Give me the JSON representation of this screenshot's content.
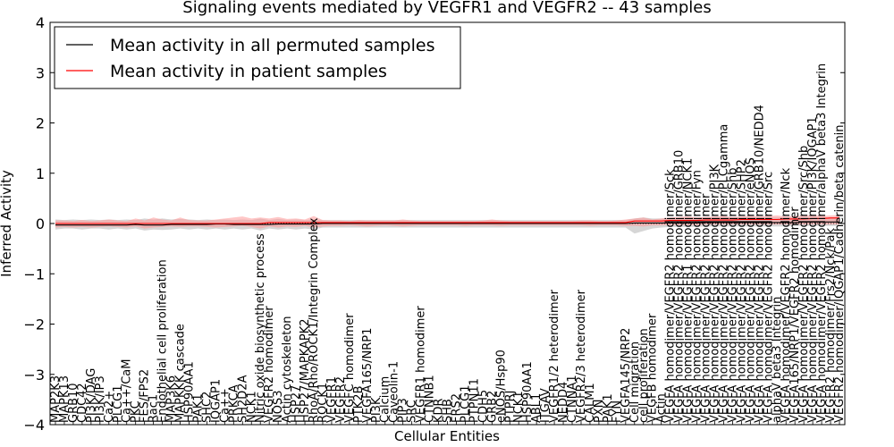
{
  "chart_data": {
    "type": "line",
    "title": "Signaling events mediated by VEGFR1 and VEGFR2 -- 43 samples",
    "xlabel": "Cellular Entities",
    "ylabel": "Inferred Activity",
    "ylim": [
      -4,
      4
    ],
    "yticks": [
      -4,
      -3,
      -2,
      -1,
      0,
      1,
      2,
      3,
      4
    ],
    "grid": false,
    "legend_position": "top-left",
    "legend": [
      {
        "label": "Mean activity in all permuted samples",
        "color": "#000000"
      },
      {
        "label": "Mean activity in patient samples",
        "color": "#ff0000"
      }
    ],
    "categories": [
      "MAP2K3",
      "MAPK13",
      "GRB10",
      "CDC42",
      "PI3K/DAG",
      "PI3K/IP3",
      "Ca2+",
      "PLCG1",
      "Ca++/CaM",
      "PKC",
      "FES/FPS2",
      "Rac1",
      "Endothelial cell proliferation",
      "MAP3K6",
      "MAPKKK cascade",
      "HSP90AA1",
      "PAK1",
      "SHC2",
      "IQGAP1",
      "Ca++",
      "PRKCA",
      "SH2D2A",
      "NCK1",
      "Nitric oxide biosynthetic process",
      "VEGFR2 homodimer",
      "NOS3",
      "Actin cytoskeleton",
      "HSP27",
      "HSP27/MAPKAPK2",
      "RhoA/Rho/ROCK1/Integrin Complex",
      "ROCK1",
      "VEGFR1",
      "VEGFR2",
      "VEGFC homodimer",
      "PTK2B",
      "VEGFA165/NRP1",
      "PI3K",
      "Calcium",
      "Caveolin-1",
      "PIP3",
      "SRC",
      "VEGFR1 homodimer",
      "CTNNB1",
      "KDR",
      "SHB",
      "FRS2",
      "PLCG1",
      "PTPN11",
      "CDH5",
      "GRB2",
      "eNOS/Hsp90",
      "PTPRJ",
      "NCK1",
      "HSP90AA1",
      "ABL1",
      "ITGAV",
      "VEGFR1/2 heterodimer",
      "NEDD4",
      "CTNNA1",
      "VEGFR2/3 heterodimer",
      "CALM1",
      "PXN",
      "PAK1",
      "FYN",
      "VEGFA145/NRP2",
      "Cell migration",
      "cell proliferation",
      "VEGFB homodimer",
      "Actin",
      "VEGFA homodimer/VEGFR2 homodimer/Sck",
      "VEGFA homodimer/VEGFR2 homodimer/GRB10",
      "VEGFA homodimer/VEGFR1 homodimer/NCK1",
      "VEGFA homodimer/VEGFR2 homodimer/Fyn",
      "VEGFA homodimer/VEGFR2 homodimer",
      "VEGFA homodimer/VEGFR2 homodimer/PI3K",
      "VEGFA homodimer/VEGFR2 homodimer/PLCgamma",
      "VEGFA homodimer/VEGFR2 homodimer/Shb",
      "VEGFA homodimer/VEGFR2 homodimer/SHP2",
      "VEGFA homodimer/VEGFR2 homodimer/eNOS",
      "VEGFA homodimer/VEGFR2 homodimer/GRB10/NEDD4",
      "VEGFA homodimer/VEGFR2 homodimer/Src",
      "alphaV beta3 Integrin",
      "VEGFA homodimer/VEGFR2 homodimer/Nck",
      "VEGFA165/NRP1/VEGFR2 homodimer",
      "VEGFA homodimer/VEGFR2 homodimer/Src/Shb",
      "VEGFA homodimer/VEGFR2 homodimer/PI3K/IQGAP1",
      "VEGFA homodimer/VEGFR2 homodimer/alphaV beta3 Integrin",
      "VEGFR2 homodimer/Frs2/Nck/Pak",
      "VEGFR2 homodimer/IQGAP1/Cadherin/beta catenin"
    ],
    "series": [
      {
        "name": "Mean activity in all permuted samples",
        "color": "#000000",
        "values": [
          -0.03,
          -0.03,
          -0.03,
          -0.03,
          -0.03,
          -0.03,
          -0.03,
          -0.03,
          -0.03,
          -0.02,
          -0.03,
          -0.03,
          -0.03,
          -0.02,
          -0.02,
          -0.02,
          -0.02,
          -0.02,
          -0.01,
          -0.01,
          -0.02,
          -0.02,
          -0.02,
          -0.02,
          -0.02,
          -0.01,
          -0.01,
          -0.01,
          -0.01,
          -0.01,
          0.0,
          0.0,
          0.0,
          0.0,
          0.0,
          0.0,
          0.0,
          0.0,
          0.0,
          0.0,
          0.0,
          0.0,
          0.0,
          0.0,
          0.0,
          0.0,
          0.0,
          0.0,
          0.0,
          0.0,
          0.0,
          0.0,
          0.0,
          0.0,
          0.0,
          0.0,
          0.0,
          0.0,
          0.0,
          0.0,
          0.0,
          0.0,
          0.0,
          0.0,
          0.0,
          0.01,
          0.01,
          0.01,
          0.01,
          0.01,
          0.01,
          0.01,
          0.01,
          0.02,
          0.02,
          0.02,
          0.02,
          0.02,
          0.02,
          0.02,
          0.02,
          0.02,
          0.02,
          0.02,
          0.03,
          0.03,
          0.03,
          0.03,
          0.03
        ]
      },
      {
        "name": "Mean activity in patient samples",
        "color": "#ff0000",
        "values": [
          0.0,
          0.0,
          0.0,
          0.0,
          0.0,
          0.0,
          0.0,
          0.0,
          0.0,
          0.0,
          0.0,
          0.0,
          0.0,
          0.0,
          0.0,
          0.0,
          0.0,
          0.0,
          0.0,
          0.0,
          0.0,
          0.0,
          0.0,
          0.0,
          0.02,
          0.02,
          0.02,
          0.02,
          0.02,
          0.02,
          0.02,
          0.02,
          0.02,
          0.02,
          0.02,
          0.02,
          0.02,
          0.02,
          0.02,
          0.02,
          0.02,
          0.02,
          0.02,
          0.02,
          0.02,
          0.02,
          0.02,
          0.02,
          0.02,
          0.02,
          0.02,
          0.02,
          0.02,
          0.02,
          0.02,
          0.02,
          0.02,
          0.02,
          0.02,
          0.02,
          0.02,
          0.02,
          0.02,
          0.02,
          0.02,
          0.05,
          0.05,
          0.05,
          0.05,
          0.06,
          0.06,
          0.06,
          0.06,
          0.07,
          0.07,
          0.07,
          0.07,
          0.08,
          0.08,
          0.08,
          0.08,
          0.08,
          0.09,
          0.09,
          0.09,
          0.1,
          0.1,
          0.11,
          0.11
        ]
      }
    ],
    "band": {
      "name": "patient spread",
      "color": "#ff9999",
      "lower": [
        -0.08,
        -0.07,
        -0.08,
        -0.07,
        -0.08,
        -0.07,
        -0.06,
        -0.07,
        -0.08,
        -0.06,
        -0.1,
        -0.08,
        -0.07,
        -0.06,
        -0.07,
        -0.06,
        -0.06,
        -0.07,
        -0.08,
        -0.07,
        -0.06,
        -0.05,
        -0.07,
        -0.1,
        -0.06,
        -0.08,
        -0.06,
        -0.07,
        -0.05,
        -0.08,
        -0.06,
        -0.05,
        -0.05,
        -0.04,
        -0.05,
        -0.06,
        -0.05,
        -0.04,
        -0.05,
        -0.06,
        -0.05,
        -0.04,
        -0.04,
        -0.04,
        -0.04,
        -0.04,
        -0.05,
        -0.04,
        -0.04,
        -0.04,
        -0.05,
        -0.04,
        -0.04,
        -0.04,
        -0.04,
        -0.04,
        -0.04,
        -0.04,
        -0.04,
        -0.04,
        -0.05,
        -0.04,
        -0.04,
        -0.04,
        -0.05,
        -0.05,
        -0.06,
        -0.04,
        -0.04,
        -0.03,
        -0.03,
        -0.03,
        -0.03,
        -0.02,
        -0.02,
        -0.02,
        -0.02,
        -0.02,
        -0.02,
        -0.02,
        -0.02,
        -0.02,
        -0.02,
        -0.02,
        -0.02,
        -0.02,
        -0.02,
        -0.02,
        -0.02
      ],
      "upper": [
        0.06,
        0.06,
        0.05,
        0.07,
        0.05,
        0.06,
        0.08,
        0.06,
        0.05,
        0.1,
        0.06,
        0.12,
        0.08,
        0.06,
        0.12,
        0.07,
        0.06,
        0.06,
        0.08,
        0.1,
        0.12,
        0.14,
        0.1,
        0.12,
        0.1,
        0.13,
        0.09,
        0.1,
        0.08,
        0.15,
        0.07,
        0.06,
        0.06,
        0.05,
        0.07,
        0.06,
        0.06,
        0.06,
        0.06,
        0.08,
        0.06,
        0.05,
        0.05,
        0.05,
        0.05,
        0.05,
        0.05,
        0.05,
        0.06,
        0.08,
        0.06,
        0.05,
        0.05,
        0.05,
        0.05,
        0.05,
        0.05,
        0.05,
        0.05,
        0.06,
        0.06,
        0.05,
        0.05,
        0.06,
        0.08,
        0.1,
        0.12,
        0.08,
        0.1,
        0.12,
        0.13,
        0.14,
        0.12,
        0.13,
        0.14,
        0.15,
        0.13,
        0.14,
        0.15,
        0.14,
        0.15,
        0.16,
        0.14,
        0.15,
        0.16,
        0.17,
        0.15,
        0.16,
        0.17
      ]
    },
    "permuted_band": {
      "name": "permuted spread",
      "color": "#bbbbbb",
      "lower": [
        -0.12,
        -0.1,
        -0.1,
        -0.12,
        -0.1,
        -0.1,
        -0.12,
        -0.1,
        -0.12,
        -0.1,
        -0.14,
        -0.12,
        -0.13,
        -0.12,
        -0.1,
        -0.12,
        -0.1,
        -0.12,
        -0.1,
        -0.12,
        -0.1,
        -0.12,
        -0.1,
        -0.14,
        -0.1,
        -0.12,
        -0.1,
        -0.12,
        -0.1,
        -0.12,
        -0.08,
        -0.08,
        -0.08,
        -0.08,
        -0.08,
        -0.08,
        -0.08,
        -0.08,
        -0.08,
        -0.08,
        -0.08,
        -0.08,
        -0.08,
        -0.08,
        -0.08,
        -0.08,
        -0.08,
        -0.08,
        -0.08,
        -0.08,
        -0.08,
        -0.08,
        -0.08,
        -0.08,
        -0.08,
        -0.08,
        -0.08,
        -0.08,
        -0.08,
        -0.08,
        -0.08,
        -0.08,
        -0.08,
        -0.08,
        -0.08,
        -0.2,
        -0.15,
        -0.1,
        -0.08,
        -0.07,
        -0.07,
        -0.07,
        -0.07,
        -0.06,
        -0.06,
        -0.06,
        -0.06,
        -0.06,
        -0.06,
        -0.06,
        -0.06,
        -0.06,
        -0.06,
        -0.05,
        -0.05,
        -0.05,
        -0.05,
        -0.05,
        -0.05
      ],
      "upper": [
        0.08,
        0.07,
        0.08,
        0.07,
        0.08,
        0.07,
        0.08,
        0.07,
        0.08,
        0.07,
        0.1,
        0.08,
        0.1,
        0.08,
        0.09,
        0.08,
        0.07,
        0.08,
        0.07,
        0.08,
        0.07,
        0.08,
        0.07,
        0.1,
        0.07,
        0.09,
        0.07,
        0.08,
        0.07,
        0.08,
        0.07,
        0.07,
        0.07,
        0.07,
        0.07,
        0.07,
        0.07,
        0.07,
        0.07,
        0.07,
        0.07,
        0.07,
        0.07,
        0.07,
        0.07,
        0.07,
        0.07,
        0.07,
        0.07,
        0.07,
        0.07,
        0.07,
        0.07,
        0.07,
        0.07,
        0.07,
        0.07,
        0.07,
        0.07,
        0.07,
        0.07,
        0.07,
        0.07,
        0.07,
        0.07,
        0.1,
        0.12,
        0.1,
        0.1,
        0.11,
        0.11,
        0.12,
        0.12,
        0.12,
        0.12,
        0.12,
        0.12,
        0.12,
        0.12,
        0.12,
        0.12,
        0.12,
        0.12,
        0.12,
        0.12,
        0.12,
        0.12,
        0.12,
        0.12
      ]
    }
  }
}
